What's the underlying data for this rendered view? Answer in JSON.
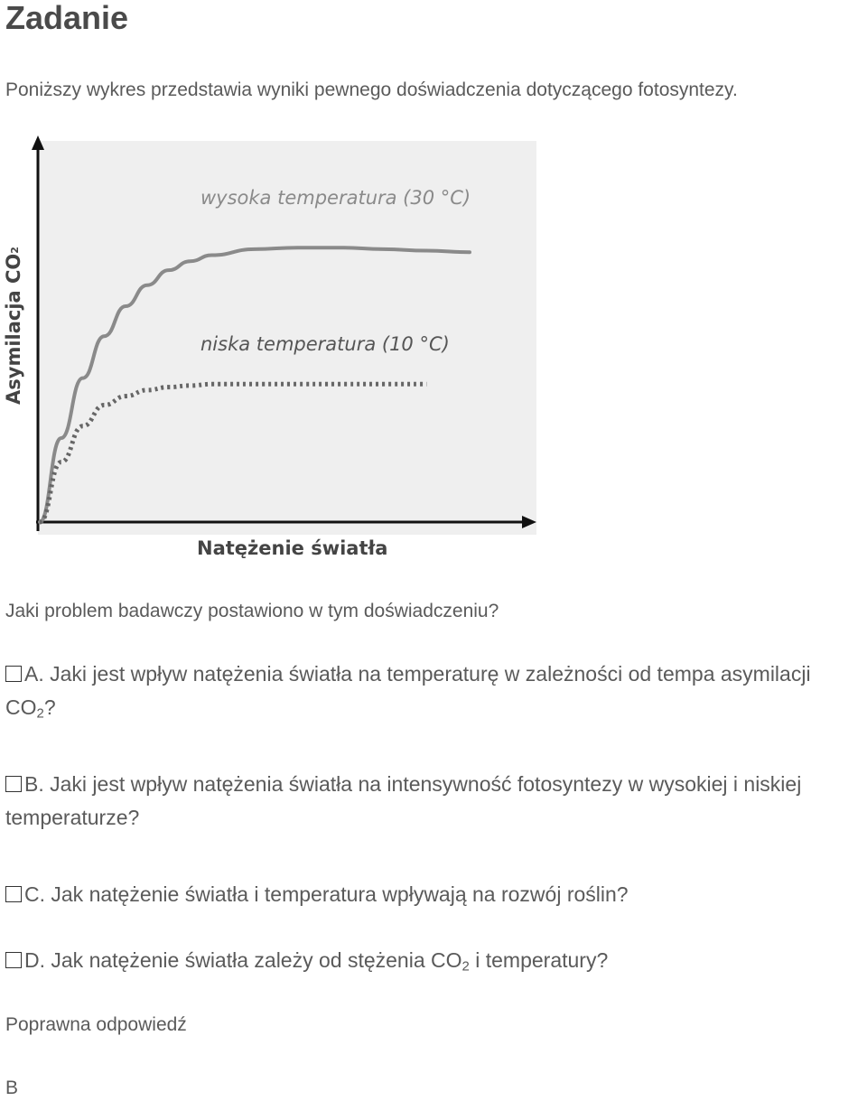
{
  "page": {
    "title": "Zadanie",
    "intro": "Poniższy wykres przedstawia wyniki pewnego doświadczenia dotyczącego fotosyntezy."
  },
  "chart_data": {
    "type": "line",
    "ylabel": "Asymilacja CO",
    "ylabel_sub": "2",
    "xlabel": "Natężenie światła",
    "series": [
      {
        "name": "wysoka temperatura (30 °C)",
        "style": "solid",
        "color": "#8a8a8a",
        "x": [
          0,
          0.05,
          0.1,
          0.15,
          0.2,
          0.25,
          0.3,
          0.35,
          0.4,
          0.5,
          0.6,
          0.7,
          0.8,
          0.9,
          1.0
        ],
        "y": [
          0,
          0.28,
          0.48,
          0.62,
          0.72,
          0.79,
          0.84,
          0.87,
          0.89,
          0.91,
          0.915,
          0.915,
          0.91,
          0.905,
          0.9
        ]
      },
      {
        "name": "niska temperatura (10 °C)",
        "style": "dotted",
        "color": "#666666",
        "x": [
          0,
          0.05,
          0.1,
          0.15,
          0.2,
          0.25,
          0.3,
          0.35,
          0.4,
          0.5,
          0.6,
          0.7,
          0.8,
          0.9
        ],
        "y": [
          0,
          0.2,
          0.32,
          0.39,
          0.42,
          0.44,
          0.45,
          0.455,
          0.46,
          0.46,
          0.46,
          0.46,
          0.46,
          0.46
        ]
      }
    ],
    "grid": false,
    "axis_ticks": false
  },
  "question": {
    "text": "Jaki problem badawczy postawiono w tym doświadczeniu?"
  },
  "options": [
    {
      "letter": "A.",
      "text": "Jaki jest wpływ natężenia światła na temperaturę w zależności od tempa asymilacji CO",
      "sub": "2",
      "after": "?"
    },
    {
      "letter": "B.",
      "text": "Jaki jest wpływ natężenia światła na intensywność fotosyntezy w wysokiej i niskiej temperaturze?",
      "sub": "",
      "after": ""
    },
    {
      "letter": "C.",
      "text": "Jak natężenie światła i temperatura wpływają na rozwój roślin?",
      "sub": "",
      "after": ""
    },
    {
      "letter": "D.",
      "text": "Jak natężenie światła zależy od stężenia CO",
      "sub": "2",
      "after": " i temperatury?"
    }
  ],
  "answer": {
    "label": "Poprawna odpowiedź",
    "value": "B"
  }
}
